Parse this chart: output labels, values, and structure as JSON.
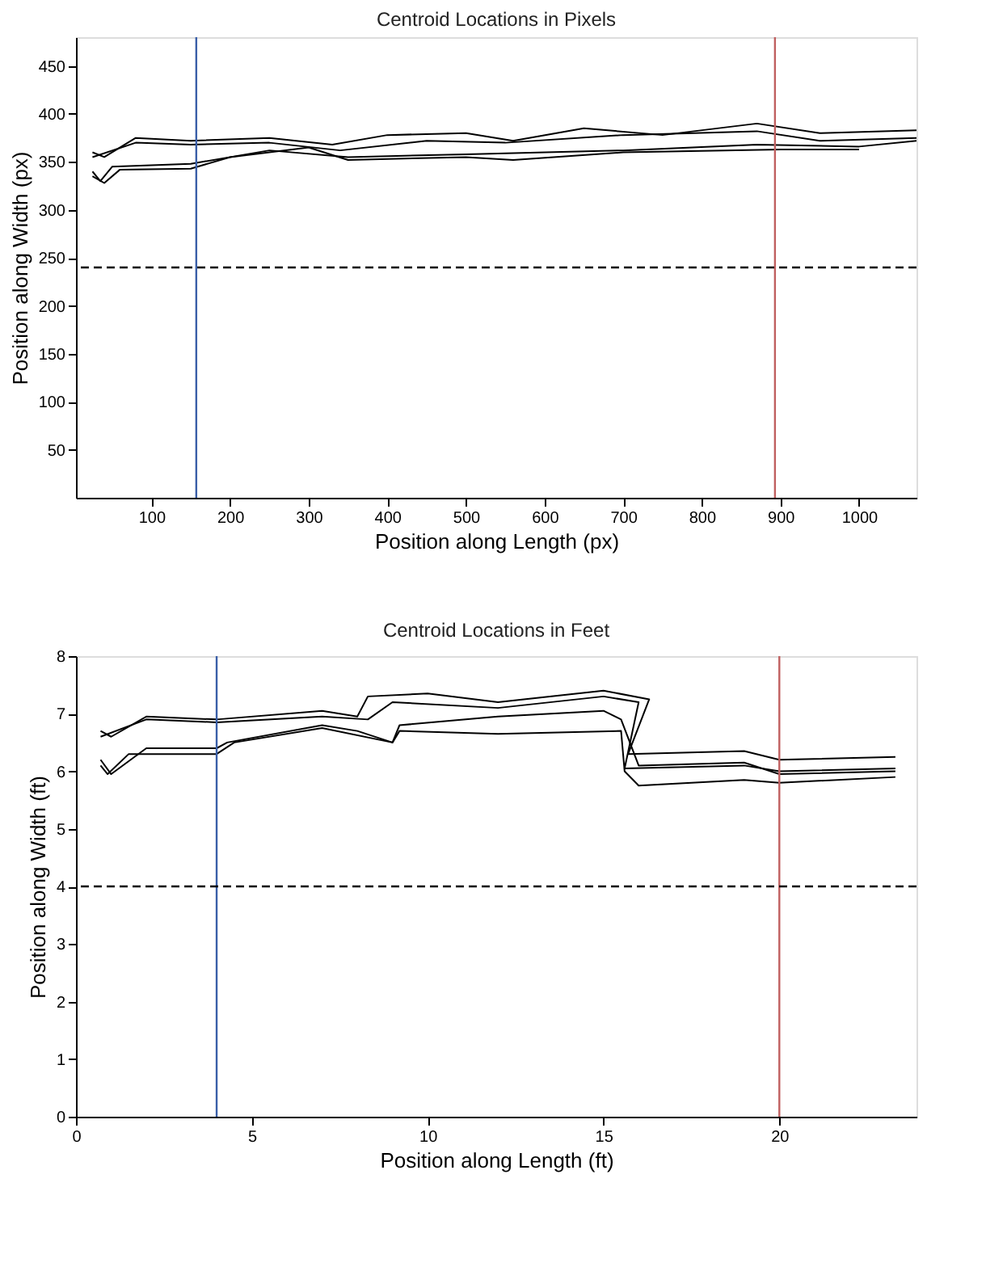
{
  "chart_data": [
    {
      "type": "line",
      "title": "Centroid Locations in Pixels",
      "xlabel": "Position along Length (px)",
      "ylabel": "Position along Width (px)",
      "xlim": [
        4,
        1073
      ],
      "ylim": [
        0,
        480
      ],
      "xticks": [
        100,
        200,
        300,
        400,
        500,
        600,
        700,
        800,
        900,
        1000
      ],
      "yticks": [
        50,
        100,
        150,
        200,
        250,
        300,
        350,
        400,
        450
      ],
      "grid": false,
      "series": [
        {
          "color": "#000000",
          "x": [
            25,
            40,
            80,
            150,
            250,
            330,
            400,
            500,
            560,
            650,
            750,
            870,
            950,
            1073
          ],
          "values": [
            360,
            355,
            375,
            372,
            375,
            368,
            378,
            380,
            372,
            385,
            378,
            390,
            380,
            383
          ]
        },
        {
          "color": "#000000",
          "x": [
            25,
            80,
            150,
            250,
            340,
            450,
            550,
            700,
            870,
            950,
            1073
          ],
          "values": [
            355,
            370,
            368,
            370,
            362,
            372,
            370,
            378,
            382,
            372,
            375
          ]
        },
        {
          "color": "#000000",
          "x": [
            25,
            35,
            50,
            150,
            250,
            350,
            500,
            700,
            870,
            1000,
            1073
          ],
          "values": [
            340,
            330,
            345,
            348,
            362,
            355,
            358,
            362,
            368,
            366,
            372
          ]
        },
        {
          "color": "#000000",
          "x": [
            25,
            40,
            60,
            150,
            200,
            300,
            350,
            500,
            560,
            700,
            900,
            1000
          ],
          "values": [
            335,
            328,
            342,
            343,
            355,
            365,
            352,
            355,
            352,
            360,
            363,
            363
          ]
        }
      ],
      "ref_lines": [
        {
          "axis": "x",
          "value": 157,
          "color": "#3a5fa8",
          "line_style": "solid"
        },
        {
          "axis": "x",
          "value": 893,
          "color": "#c06060",
          "line_style": "solid"
        },
        {
          "axis": "y",
          "value": 240,
          "color": "#000000",
          "line_style": "dashed"
        }
      ]
    },
    {
      "type": "line",
      "title": "Centroid Locations in Feet",
      "xlabel": "Position along Length (ft)",
      "ylabel": "Position along Width (ft)",
      "xlim": [
        0,
        23.9
      ],
      "ylim": [
        0,
        8
      ],
      "xticks": [
        0,
        5,
        10,
        15,
        20
      ],
      "yticks": [
        0,
        1,
        2,
        3,
        4,
        5,
        6,
        7,
        8
      ],
      "grid": false,
      "series": [
        {
          "color": "#000000",
          "x": [
            0.7,
            1,
            2,
            4,
            7,
            8,
            8.3,
            10,
            12,
            15,
            16.3,
            15.7,
            19,
            20,
            23.3
          ],
          "values": [
            6.7,
            6.6,
            6.95,
            6.9,
            7.05,
            6.95,
            7.3,
            7.35,
            7.2,
            7.4,
            7.25,
            6.3,
            6.35,
            6.2,
            6.25
          ]
        },
        {
          "color": "#000000",
          "x": [
            0.7,
            2,
            4,
            7,
            8.3,
            9,
            12,
            15,
            16,
            15.6,
            19,
            20,
            23.3
          ],
          "values": [
            6.6,
            6.9,
            6.85,
            6.95,
            6.9,
            7.2,
            7.1,
            7.3,
            7.2,
            6.05,
            6.1,
            6.0,
            6.05
          ]
        },
        {
          "color": "#000000",
          "x": [
            0.7,
            0.9,
            1.5,
            4,
            4.5,
            7,
            9,
            9.2,
            12,
            15.5,
            15.6,
            16,
            19,
            20,
            23.3
          ],
          "values": [
            6.1,
            5.95,
            6.3,
            6.3,
            6.5,
            6.75,
            6.5,
            6.7,
            6.65,
            6.7,
            6.0,
            5.75,
            5.85,
            5.8,
            5.9
          ]
        },
        {
          "color": "#000000",
          "x": [
            0.7,
            1,
            2,
            4,
            4.3,
            7,
            8,
            9,
            9.2,
            12,
            15,
            15.5,
            16,
            19,
            20,
            23.3
          ],
          "values": [
            6.2,
            5.95,
            6.4,
            6.4,
            6.5,
            6.8,
            6.7,
            6.5,
            6.8,
            6.95,
            7.05,
            6.9,
            6.1,
            6.15,
            5.95,
            6.0
          ]
        }
      ],
      "ref_lines": [
        {
          "axis": "x",
          "value": 4,
          "color": "#3a5fa8",
          "line_style": "solid"
        },
        {
          "axis": "x",
          "value": 20,
          "color": "#c06060",
          "line_style": "solid"
        },
        {
          "axis": "y",
          "value": 4,
          "color": "#000000",
          "line_style": "dashed"
        }
      ]
    }
  ]
}
